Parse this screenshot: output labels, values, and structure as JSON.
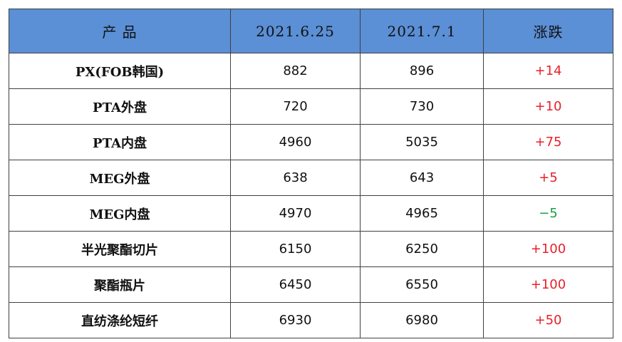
{
  "colors": {
    "header_bg": "#5b8fd6",
    "rise": "#e8202a",
    "fall": "#1a9e46",
    "border": "#404040"
  },
  "table": {
    "headers": [
      "产  品",
      "2021.6.25",
      "2021.7.1",
      "涨跌"
    ],
    "rows": [
      {
        "product": "PX(FOB韩国)",
        "d1": "882",
        "d2": "896",
        "change": "+14",
        "dir": "up"
      },
      {
        "product": "PTA外盘",
        "d1": "720",
        "d2": "730",
        "change": "+10",
        "dir": "up"
      },
      {
        "product": "PTA内盘",
        "d1": "4960",
        "d2": "5035",
        "change": "+75",
        "dir": "up"
      },
      {
        "product": "MEG外盘",
        "d1": "638",
        "d2": "643",
        "change": "+5",
        "dir": "up"
      },
      {
        "product": "MEG内盘",
        "d1": "4970",
        "d2": "4965",
        "change": "−5",
        "dir": "down"
      },
      {
        "product": "半光聚酯切片",
        "d1": "6150",
        "d2": "6250",
        "change": "+100",
        "dir": "up"
      },
      {
        "product": "聚酯瓶片",
        "d1": "6450",
        "d2": "6550",
        "change": "+100",
        "dir": "up"
      },
      {
        "product": "直纺涤纶短纤",
        "d1": "6930",
        "d2": "6980",
        "change": "+50",
        "dir": "up"
      }
    ]
  }
}
